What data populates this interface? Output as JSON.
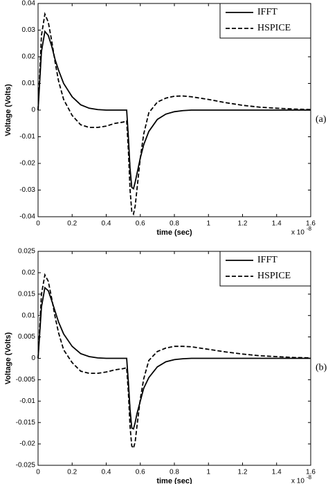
{
  "chart_data": [
    {
      "type": "line",
      "ylabel": "Voltage (Volts)",
      "xlabel": "time (sec)",
      "x_multiplier": "x 10",
      "x_exponent": "-8",
      "panel_label": "(a)",
      "x": [
        0,
        0.02,
        0.04,
        0.06,
        0.08,
        0.1,
        0.12,
        0.15,
        0.2,
        0.25,
        0.3,
        0.35,
        0.4,
        0.45,
        0.5,
        0.52,
        0.53,
        0.54,
        0.55,
        0.56,
        0.57,
        0.58,
        0.6,
        0.62,
        0.65,
        0.7,
        0.75,
        0.8,
        0.85,
        0.9,
        1.0,
        1.1,
        1.2,
        1.3,
        1.4,
        1.5,
        1.6
      ],
      "series": [
        {
          "name": "IFFT",
          "color": "#000000",
          "style": "solid",
          "values": [
            0,
            0.022,
            0.0295,
            0.028,
            0.024,
            0.019,
            0.015,
            0.01,
            0.005,
            0.002,
            0.0007,
            0.0002,
            0,
            0,
            0,
            0,
            -0.01,
            -0.022,
            -0.029,
            -0.0295,
            -0.027,
            -0.024,
            -0.018,
            -0.013,
            -0.008,
            -0.0035,
            -0.0015,
            -0.0006,
            -0.0002,
            0,
            0,
            0,
            0,
            0,
            0,
            0,
            0
          ]
        },
        {
          "name": "HSPICE",
          "color": "#000000",
          "style": "dashed",
          "values": [
            0,
            0.028,
            0.036,
            0.033,
            0.026,
            0.018,
            0.011,
            0.004,
            -0.002,
            -0.0055,
            -0.0065,
            -0.0065,
            -0.006,
            -0.005,
            -0.0045,
            -0.004,
            -0.015,
            -0.03,
            -0.038,
            -0.039,
            -0.036,
            -0.03,
            -0.018,
            -0.009,
            -0.001,
            0.003,
            0.0045,
            0.0052,
            0.0053,
            0.005,
            0.004,
            0.0028,
            0.0018,
            0.0011,
            0.0007,
            0.0004,
            0.0002
          ]
        }
      ],
      "xlim": [
        0,
        1.6
      ],
      "xticks": [
        0,
        0.2,
        0.4,
        0.6,
        0.8,
        1,
        1.2,
        1.4,
        1.6
      ],
      "ylim": [
        -0.04,
        0.04
      ],
      "yticks": [
        -0.04,
        -0.03,
        -0.02,
        -0.01,
        0,
        0.01,
        0.02,
        0.03,
        0.04
      ],
      "legend": "upper right",
      "grid": false
    },
    {
      "type": "line",
      "ylabel": "Voltage (Volts)",
      "xlabel": "time (sec)",
      "x_multiplier": "x 10",
      "x_exponent": "-8",
      "panel_label": "(b)",
      "x": [
        0,
        0.02,
        0.04,
        0.06,
        0.08,
        0.1,
        0.12,
        0.15,
        0.2,
        0.25,
        0.3,
        0.35,
        0.4,
        0.45,
        0.5,
        0.52,
        0.53,
        0.54,
        0.55,
        0.56,
        0.57,
        0.58,
        0.6,
        0.62,
        0.65,
        0.7,
        0.75,
        0.8,
        0.85,
        0.9,
        1.0,
        1.1,
        1.2,
        1.3,
        1.4,
        1.5,
        1.6
      ],
      "series": [
        {
          "name": "IFFT",
          "color": "#000000",
          "style": "solid",
          "values": [
            0,
            0.012,
            0.0165,
            0.0158,
            0.0135,
            0.011,
            0.0085,
            0.0057,
            0.0028,
            0.0011,
            0.0004,
            0.0001,
            0,
            0,
            0,
            0,
            -0.0055,
            -0.012,
            -0.0163,
            -0.0165,
            -0.015,
            -0.013,
            -0.01,
            -0.007,
            -0.0045,
            -0.002,
            -0.0008,
            -0.0003,
            -0.0001,
            0,
            0,
            0,
            0,
            0,
            0,
            0,
            0
          ]
        },
        {
          "name": "HSPICE",
          "color": "#000000",
          "style": "dashed",
          "values": [
            0,
            0.015,
            0.0195,
            0.018,
            0.014,
            0.0097,
            0.006,
            0.002,
            -0.001,
            -0.003,
            -0.0035,
            -0.0035,
            -0.0032,
            -0.0027,
            -0.0024,
            -0.0022,
            -0.008,
            -0.016,
            -0.0205,
            -0.021,
            -0.0195,
            -0.016,
            -0.0095,
            -0.0048,
            -0.0005,
            0.0016,
            0.0024,
            0.0028,
            0.0028,
            0.0027,
            0.0021,
            0.0015,
            0.001,
            0.0006,
            0.0004,
            0.0002,
            0.0001
          ]
        }
      ],
      "xlim": [
        0,
        1.6
      ],
      "xticks": [
        0,
        0.2,
        0.4,
        0.6,
        0.8,
        1,
        1.2,
        1.4,
        1.6
      ],
      "ylim": [
        -0.025,
        0.025
      ],
      "yticks": [
        -0.025,
        -0.02,
        -0.015,
        -0.01,
        -0.005,
        0,
        0.005,
        0.01,
        0.015,
        0.02,
        0.025
      ],
      "legend": "upper right",
      "grid": false
    }
  ]
}
